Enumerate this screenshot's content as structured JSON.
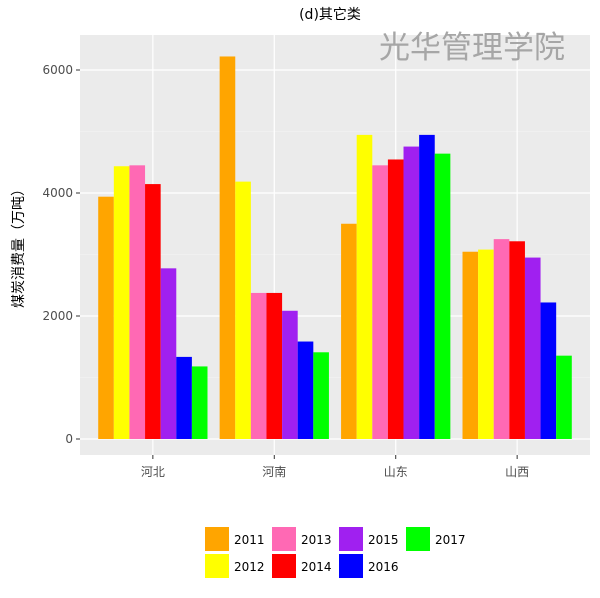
{
  "chart_data": {
    "type": "bar",
    "title": "(d)其它类",
    "watermark": "光华管理学院",
    "xlabel": "",
    "ylabel": "煤炭消费量（万吨）",
    "ylim": [
      -200,
      6600
    ],
    "yticks": [
      0,
      2000,
      4000,
      6000
    ],
    "grid": true,
    "legend_position": "bottom",
    "categories": [
      "河北",
      "河南",
      "山东",
      "山西"
    ],
    "series": [
      {
        "name": "2011",
        "color": "#FFA500",
        "values": [
          3940,
          6220,
          3500,
          3045
        ]
      },
      {
        "name": "2012",
        "color": "#FFFF00",
        "values": [
          4435,
          4185,
          4945,
          3080
        ]
      },
      {
        "name": "2013",
        "color": "#FF69B4",
        "values": [
          4450,
          2375,
          4450,
          3250
        ]
      },
      {
        "name": "2014",
        "color": "#FF0000",
        "values": [
          4145,
          2375,
          4545,
          3215
        ]
      },
      {
        "name": "2015",
        "color": "#A020F0",
        "values": [
          2775,
          2085,
          4755,
          2950
        ]
      },
      {
        "name": "2016",
        "color": "#0000FF",
        "values": [
          1335,
          1585,
          4945,
          2220
        ]
      },
      {
        "name": "2017",
        "color": "#00FF00",
        "values": [
          1180,
          1410,
          4640,
          1355
        ]
      }
    ]
  }
}
